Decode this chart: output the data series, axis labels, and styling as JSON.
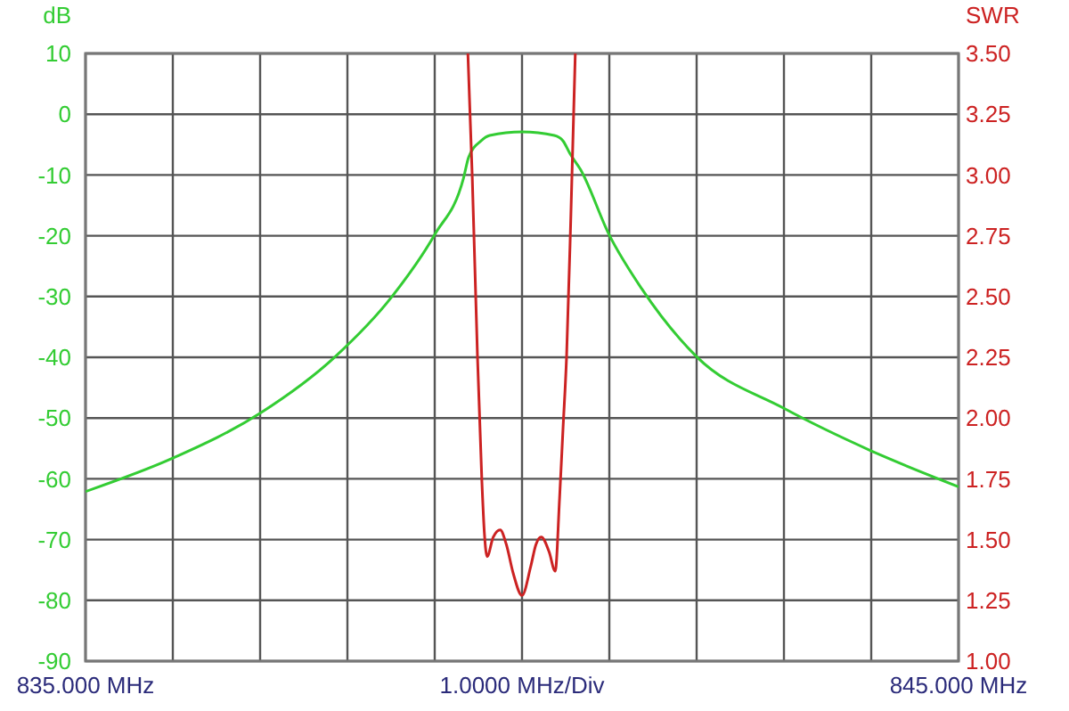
{
  "chart_data": {
    "type": "line",
    "ylabel": "dB",
    "y2label": "SWR",
    "xlabel": "1.0000 MHz/Div",
    "xlim": [
      835,
      845
    ],
    "xticks": [
      {
        "value": 835,
        "label": "835.000 MHz"
      },
      {
        "value": 845,
        "label": "845.000 MHz"
      }
    ],
    "ylim": [
      -90,
      10
    ],
    "yticks": [
      -90,
      -80,
      -70,
      -60,
      -50,
      -40,
      -30,
      -20,
      -10,
      0,
      10
    ],
    "y2lim": [
      1,
      3.5
    ],
    "y2ticks": [
      {
        "value": 1,
        "label": "1.00"
      },
      {
        "value": 1.25,
        "label": "1.25"
      },
      {
        "value": 1.5,
        "label": "1.50"
      },
      {
        "value": 1.75,
        "label": "1.75"
      },
      {
        "value": 2,
        "label": "2.00"
      },
      {
        "value": 2.25,
        "label": "2.25"
      },
      {
        "value": 2.5,
        "label": "2.50"
      },
      {
        "value": 2.75,
        "label": "2.75"
      },
      {
        "value": 3,
        "label": "3.00"
      },
      {
        "value": 3.25,
        "label": "3.25"
      },
      {
        "value": 3.5,
        "label": "3.50"
      }
    ],
    "grid": true,
    "marker": "none",
    "line_style": "solid",
    "series": [
      {
        "color": "#33cc33",
        "x": [
          835,
          836,
          837,
          837.86,
          838.5,
          839,
          839.33,
          839.39,
          839.53,
          839.63,
          840,
          840.37,
          840.47,
          840.55,
          840.67,
          841,
          841.37,
          842,
          843,
          844,
          845
        ],
        "values": [
          -62.1,
          -56.6,
          -49.2,
          -39.9,
          -30.2,
          -19.8,
          -10.5,
          -7,
          -4.4,
          -3.5,
          -2.9,
          -3.5,
          -4.4,
          -6.5,
          -9.1,
          -19.9,
          -28.7,
          -39.9,
          -48.4,
          -55.4,
          -61.3
        ]
      },
      {
        "color": "#cc2222",
        "axis": "y2",
        "x": [
          839.38,
          839.43,
          839.49,
          839.54,
          839.57,
          839.6,
          839.67,
          839.75,
          839.82,
          839.9,
          840,
          840.1,
          840.16,
          840.22,
          840.31,
          840.38,
          840.43,
          840.47,
          840.51,
          840.56,
          840.61
        ],
        "values": [
          3.5,
          2.99,
          2.25,
          1.74,
          1.52,
          1.43,
          1.51,
          1.54,
          1.48,
          1.36,
          1.27,
          1.39,
          1.48,
          1.51,
          1.45,
          1.37,
          1.67,
          1.96,
          2.25,
          2.84,
          3.5
        ]
      }
    ]
  }
}
